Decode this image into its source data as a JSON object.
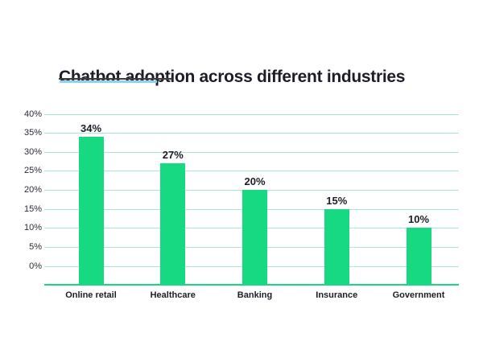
{
  "page": {
    "background_color": "#ffffff"
  },
  "title_block": {
    "title": "Chatbot adoption across different industries",
    "underline_dark_color": "#3d3d3d",
    "underline_accent_color": "#8fd0f0"
  },
  "chart_data": {
    "type": "bar",
    "title": "Chatbot adoption across different industries",
    "categories": [
      "Online retail",
      "Healthcare",
      "Banking",
      "Insurance",
      "Government"
    ],
    "values": [
      34,
      27,
      20,
      15,
      10
    ],
    "value_labels": [
      "34%",
      "27%",
      "20%",
      "15%",
      "10%"
    ],
    "y_ticks": [
      {
        "value": 40,
        "label": "40%"
      },
      {
        "value": 35,
        "label": "35%"
      },
      {
        "value": 30,
        "label": "30%"
      },
      {
        "value": 25,
        "label": "25%"
      },
      {
        "value": 20,
        "label": "20%"
      },
      {
        "value": 15,
        "label": "15%"
      },
      {
        "value": 10,
        "label": "10%"
      },
      {
        "value": 5,
        "label": "5%"
      },
      {
        "value": 0,
        "label": "0%"
      }
    ],
    "ylim": [
      0,
      40
    ],
    "xlabel": "",
    "ylabel": "",
    "grid": true,
    "legend_position": "none",
    "colors": {
      "bar": "#17d982",
      "gridline": "#a9e8d3",
      "axis_line": "#17d982",
      "title_text": "#1d1d27",
      "label_text": "#1d1d27",
      "tick_text": "#2b2b35"
    }
  }
}
